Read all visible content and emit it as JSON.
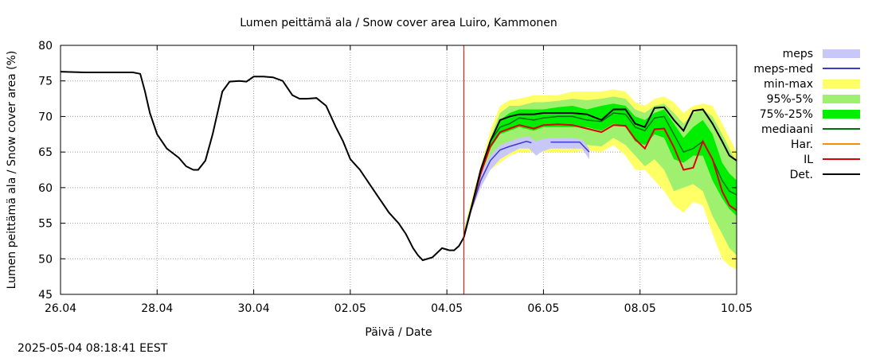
{
  "timestamp": "2025-05-04 08:18:41 EEST",
  "chart_data": {
    "type": "line",
    "title": "Lumen peittämä ala / Snow cover area Luiro, Kammonen",
    "xlabel": "Päivä / Date",
    "ylabel": "Lumen peittämä ala / Snow cover area (%)",
    "x_unit": "days",
    "xlim": [
      0,
      14
    ],
    "ylim": [
      45,
      80
    ],
    "yticks": [
      45,
      50,
      55,
      60,
      65,
      70,
      75,
      80
    ],
    "xticks": [
      {
        "x": 0,
        "label": "26.04"
      },
      {
        "x": 2,
        "label": "28.04"
      },
      {
        "x": 4,
        "label": "30.04"
      },
      {
        "x": 6,
        "label": "02.05"
      },
      {
        "x": 8,
        "label": "04.05"
      },
      {
        "x": 10,
        "label": "06.05"
      },
      {
        "x": 12,
        "label": "08.05"
      },
      {
        "x": 14,
        "label": "10.05"
      }
    ],
    "grid": true,
    "legend_position": "right",
    "forecast_start_x": 8.35,
    "colors": {
      "meps": "#c8c8f8",
      "meps_med": "#3a3ad0",
      "min_max": "#ffff66",
      "p95_5": "#a0f070",
      "p75_25": "#00ee00",
      "mediaani": "#007000",
      "har": "#ff8c00",
      "il": "#dd0000",
      "det": "#000000",
      "forecast_line": "#cc0000",
      "grid": "#a0a0a0"
    },
    "legend": [
      {
        "key": "meps",
        "label": "meps",
        "kind": "band"
      },
      {
        "key": "meps_med",
        "label": "meps-med",
        "kind": "line"
      },
      {
        "key": "min_max",
        "label": "min-max",
        "kind": "band"
      },
      {
        "key": "p95_5",
        "label": "95%-5%",
        "kind": "band"
      },
      {
        "key": "p75_25",
        "label": "75%-25%",
        "kind": "band"
      },
      {
        "key": "mediaani",
        "label": "mediaani",
        "kind": "line"
      },
      {
        "key": "har",
        "label": "Har.",
        "kind": "line"
      },
      {
        "key": "il",
        "label": "IL",
        "kind": "line"
      },
      {
        "key": "det",
        "label": "Det.",
        "kind": "line"
      }
    ],
    "series": {
      "observed": {
        "x": [
          0,
          0.5,
          1,
          1.5,
          1.65,
          1.75,
          1.85,
          2.0,
          2.2,
          2.45,
          2.6,
          2.75,
          2.85,
          3.0,
          3.15,
          3.35,
          3.5,
          3.7,
          3.85,
          4.0,
          4.2,
          4.4,
          4.6,
          4.8,
          4.95,
          5.1,
          5.3,
          5.5,
          5.7,
          5.85,
          6.0,
          6.2,
          6.4,
          6.6,
          6.8,
          7.0,
          7.15,
          7.3,
          7.4,
          7.5,
          7.7,
          7.9,
          8.05,
          8.15,
          8.25,
          8.35
        ],
        "y": [
          76.3,
          76.2,
          76.2,
          76.2,
          76.0,
          73.5,
          70.5,
          67.5,
          65.5,
          64.2,
          63.0,
          62.5,
          62.5,
          63.8,
          67.5,
          73.5,
          74.9,
          75.0,
          74.9,
          75.6,
          75.6,
          75.5,
          75.0,
          73.0,
          72.5,
          72.5,
          72.6,
          71.5,
          68.5,
          66.5,
          64.0,
          62.5,
          60.5,
          58.5,
          56.5,
          55.0,
          53.5,
          51.5,
          50.5,
          49.8,
          50.2,
          51.5,
          51.2,
          51.2,
          51.8,
          53.0
        ]
      },
      "min_max": {
        "x": [
          8.35,
          8.5,
          8.7,
          8.9,
          9.1,
          9.3,
          9.5,
          9.8,
          10.0,
          10.3,
          10.6,
          10.9,
          11.2,
          11.45,
          11.7,
          11.9,
          12.1,
          12.3,
          12.5,
          12.7,
          12.9,
          13.1,
          13.3,
          13.5,
          13.7,
          13.85,
          14.0
        ],
        "lo": [
          53.0,
          56.5,
          60.0,
          62.5,
          63.5,
          64.5,
          65.0,
          65.0,
          65.0,
          65.0,
          65.0,
          65.2,
          65.0,
          66.0,
          64.5,
          62.5,
          62.5,
          61.0,
          59.5,
          57.5,
          56.5,
          58.0,
          57.5,
          53.5,
          50.0,
          49.0,
          48.5
        ],
        "hi": [
          54.0,
          58.0,
          63.0,
          68.0,
          71.5,
          72.3,
          72.5,
          73.0,
          73.0,
          73.0,
          73.5,
          73.5,
          73.5,
          73.8,
          73.5,
          72.0,
          71.5,
          72.5,
          72.8,
          72.0,
          70.5,
          71.5,
          71.8,
          71.5,
          69.0,
          67.0,
          65.0
        ]
      },
      "p95_5": {
        "x": [
          8.35,
          8.5,
          8.7,
          8.9,
          9.1,
          9.3,
          9.5,
          9.8,
          10.0,
          10.3,
          10.6,
          10.9,
          11.2,
          11.45,
          11.7,
          11.9,
          12.1,
          12.3,
          12.5,
          12.7,
          12.9,
          13.1,
          13.3,
          13.5,
          13.7,
          13.85,
          14.0
        ],
        "lo": [
          53.0,
          57.0,
          61.0,
          63.5,
          65.0,
          65.5,
          66.0,
          66.0,
          66.0,
          66.0,
          66.0,
          66.0,
          65.8,
          67.0,
          66.0,
          64.5,
          63.0,
          64.0,
          62.5,
          59.5,
          60.0,
          60.5,
          59.5,
          56.0,
          53.5,
          51.5,
          50.5
        ],
        "hi": [
          54.0,
          57.5,
          62.5,
          67.0,
          70.5,
          71.5,
          71.5,
          72.0,
          72.0,
          72.2,
          72.5,
          72.3,
          72.5,
          72.8,
          72.5,
          71.0,
          70.5,
          71.5,
          71.8,
          70.5,
          69.0,
          70.5,
          71.0,
          70.0,
          67.5,
          65.5,
          63.5
        ]
      },
      "p75_25": {
        "x": [
          8.35,
          8.5,
          8.7,
          8.9,
          9.1,
          9.3,
          9.5,
          9.8,
          10.0,
          10.3,
          10.6,
          10.9,
          11.2,
          11.45,
          11.7,
          11.9,
          12.1,
          12.3,
          12.5,
          12.7,
          12.9,
          13.1,
          13.3,
          13.5,
          13.7,
          13.85,
          14.0
        ],
        "lo": [
          53.0,
          57.0,
          62.0,
          65.5,
          67.5,
          68.0,
          68.5,
          68.0,
          68.5,
          68.5,
          68.5,
          68.5,
          68.0,
          69.0,
          68.5,
          66.5,
          66.0,
          67.5,
          67.0,
          64.0,
          63.5,
          64.5,
          64.5,
          61.0,
          58.5,
          57.0,
          56.0
        ],
        "hi": [
          53.5,
          57.5,
          62.5,
          66.5,
          69.5,
          70.5,
          71.0,
          71.0,
          71.0,
          71.3,
          71.5,
          71.0,
          71.5,
          71.8,
          71.5,
          70.0,
          69.5,
          70.5,
          71.0,
          69.0,
          67.0,
          68.5,
          69.5,
          67.5,
          63.5,
          62.0,
          61.0
        ]
      },
      "mediaani": {
        "x": [
          8.35,
          8.5,
          8.7,
          8.9,
          9.1,
          9.3,
          9.5,
          9.8,
          10.0,
          10.3,
          10.6,
          10.9,
          11.2,
          11.45,
          11.7,
          11.9,
          12.1,
          12.3,
          12.5,
          12.7,
          12.9,
          13.1,
          13.3,
          13.5,
          13.7,
          13.85,
          14.0
        ],
        "y": [
          53.0,
          57.0,
          62.5,
          66.5,
          68.5,
          69.0,
          69.8,
          69.5,
          69.8,
          70.0,
          70.0,
          69.5,
          69.3,
          70.5,
          70.3,
          68.5,
          68.0,
          69.8,
          70.0,
          67.5,
          65.0,
          65.5,
          66.5,
          64.0,
          61.0,
          59.5,
          59.0
        ]
      },
      "il": {
        "x": [
          8.35,
          8.5,
          8.7,
          8.9,
          9.1,
          9.3,
          9.5,
          9.8,
          10.0,
          10.3,
          10.6,
          10.9,
          11.2,
          11.45,
          11.7,
          11.9,
          12.1,
          12.3,
          12.5,
          12.7,
          12.9,
          13.1,
          13.3,
          13.5,
          13.7,
          13.85,
          14.0
        ],
        "y": [
          53.0,
          57.0,
          62.0,
          65.8,
          67.8,
          68.3,
          68.8,
          68.3,
          68.8,
          68.9,
          68.8,
          68.3,
          67.8,
          68.8,
          68.7,
          66.8,
          65.5,
          68.2,
          68.3,
          65.7,
          62.5,
          62.8,
          66.5,
          64.0,
          59.5,
          57.5,
          56.8
        ]
      },
      "det": {
        "x": [
          8.35,
          8.5,
          8.7,
          8.9,
          9.1,
          9.3,
          9.5,
          9.8,
          10.0,
          10.3,
          10.6,
          10.9,
          11.2,
          11.45,
          11.7,
          11.9,
          12.1,
          12.3,
          12.5,
          12.7,
          12.9,
          13.1,
          13.3,
          13.5,
          13.7,
          13.85,
          14.0
        ],
        "y": [
          53.0,
          57.0,
          62.5,
          66.5,
          69.5,
          70.0,
          70.3,
          70.3,
          70.5,
          70.5,
          70.5,
          70.3,
          69.5,
          71.0,
          71.0,
          69.0,
          68.5,
          71.2,
          71.3,
          69.5,
          68.0,
          70.8,
          71.0,
          69.0,
          66.5,
          64.5,
          63.8
        ]
      },
      "meps": {
        "x": [
          8.35,
          8.5,
          8.7,
          8.9,
          9.1,
          9.3,
          9.5,
          9.7,
          9.85,
          9.95,
          10.15,
          10.5,
          10.8,
          10.95
        ],
        "lo": [
          53.0,
          56.5,
          60.0,
          62.5,
          64.0,
          64.8,
          65.5,
          65.5,
          64.5,
          65.0,
          65.5,
          65.5,
          65.5,
          64.0
        ],
        "hi": [
          53.5,
          57.0,
          62.0,
          64.5,
          66.0,
          66.5,
          67.0,
          67.2,
          66.5,
          66.8,
          67.0,
          67.0,
          66.8,
          65.5
        ]
      },
      "meps_med": {
        "segments": [
          {
            "x": [
              8.35,
              8.5,
              8.7,
              8.9,
              9.1,
              9.3,
              9.5,
              9.65,
              9.75
            ],
            "y": [
              53.0,
              56.8,
              61.0,
              63.8,
              65.3,
              65.8,
              66.2,
              66.5,
              66.3
            ]
          },
          {
            "x": [
              10.15,
              10.5,
              10.75,
              10.95
            ],
            "y": [
              66.4,
              66.4,
              66.4,
              65.0
            ]
          }
        ]
      }
    }
  }
}
